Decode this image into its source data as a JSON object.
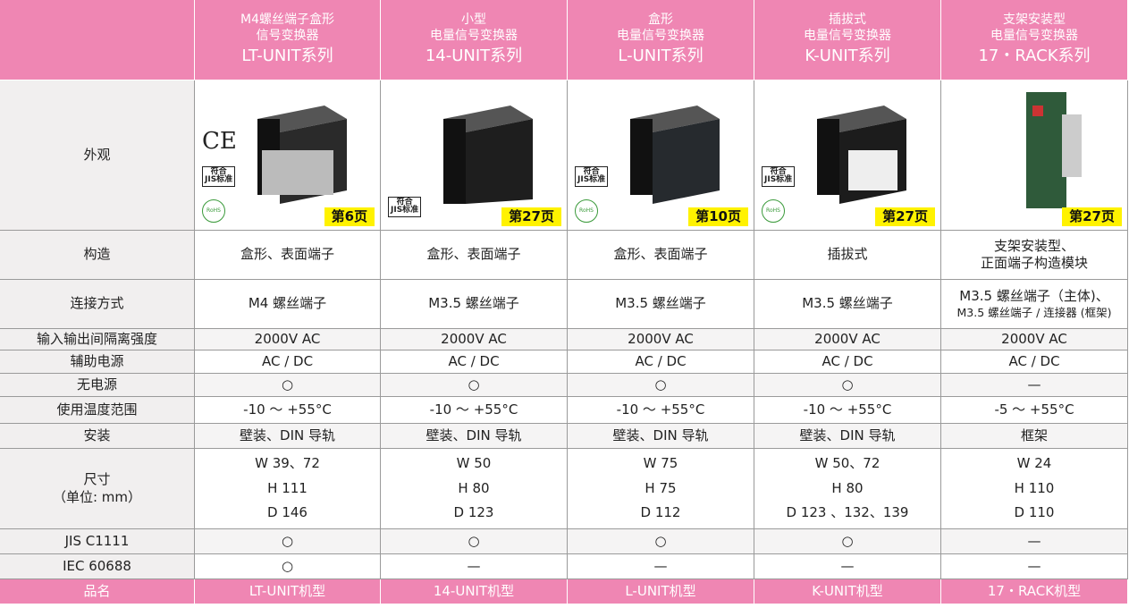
{
  "table": {
    "corner": "",
    "columns": [
      {
        "title": [
          "M4螺丝端子盒形",
          "信号变换器"
        ],
        "series": "LT-UNIT系列"
      },
      {
        "title": [
          "小型",
          "电量信号变换器"
        ],
        "series": "14-UNIT系列"
      },
      {
        "title": [
          "盒形",
          "电量信号变换器"
        ],
        "series": "L-UNIT系列"
      },
      {
        "title": [
          "插拔式",
          "电量信号变换器"
        ],
        "series": "K-UNIT系列"
      },
      {
        "title": [
          "支架安装型",
          "电量信号变换器"
        ],
        "series": "17・RACK系列"
      }
    ],
    "image_row": {
      "label": "外观",
      "cells": [
        {
          "page": "第6页",
          "ce": "CE",
          "jis": [
            "符合",
            "JIS标准"
          ],
          "rohs": "RoHS"
        },
        {
          "page": "第27页",
          "jis": [
            "符合",
            "JIS标准"
          ]
        },
        {
          "page": "第10页",
          "jis": [
            "符合",
            "JIS标准"
          ],
          "rohs": "RoHS"
        },
        {
          "page": "第27页",
          "jis": [
            "符合",
            "JIS标准"
          ],
          "rohs": "RoHS"
        },
        {
          "page": "第27页"
        }
      ]
    },
    "rows": [
      {
        "label": [
          "构造"
        ],
        "cells": [
          [
            "盒形、表面端子"
          ],
          [
            "盒形、表面端子"
          ],
          [
            "盒形、表面端子"
          ],
          [
            "插拔式"
          ],
          [
            "支架安装型、",
            "正面端子构造模块"
          ]
        ]
      },
      {
        "label": [
          "连接方式"
        ],
        "cells": [
          [
            "M4 螺丝端子"
          ],
          [
            "M3.5 螺丝端子"
          ],
          [
            "M3.5 螺丝端子"
          ],
          [
            "M3.5 螺丝端子"
          ],
          [
            "M3.5 螺丝端子（主体)、",
            "M3.5 螺丝端子 / 连接器 (框架)"
          ]
        ]
      },
      {
        "label": [
          "输入输出间隔离强度"
        ],
        "cells": [
          [
            "2000V AC"
          ],
          [
            "2000V AC"
          ],
          [
            "2000V AC"
          ],
          [
            "2000V AC"
          ],
          [
            "2000V AC"
          ]
        ]
      },
      {
        "label": [
          "辅助电源"
        ],
        "cells": [
          [
            "AC / DC"
          ],
          [
            "AC / DC"
          ],
          [
            "AC / DC"
          ],
          [
            "AC / DC"
          ],
          [
            "AC / DC"
          ]
        ]
      },
      {
        "label": [
          "无电源"
        ],
        "cells": [
          [
            "○"
          ],
          [
            "○"
          ],
          [
            "○"
          ],
          [
            "○"
          ],
          [
            "—"
          ]
        ]
      },
      {
        "label": [
          "使用温度范围"
        ],
        "cells": [
          [
            "-10 ～ +55°C"
          ],
          [
            "-10 ～ +55°C"
          ],
          [
            "-10 ～ +55°C"
          ],
          [
            "-10 ～ +55°C"
          ],
          [
            "-5 ～ +55°C"
          ]
        ]
      },
      {
        "label": [
          "安装"
        ],
        "cells": [
          [
            "壁装、DIN 导轨"
          ],
          [
            "壁装、DIN 导轨"
          ],
          [
            "壁装、DIN 导轨"
          ],
          [
            "壁装、DIN 导轨"
          ],
          [
            "框架"
          ]
        ]
      },
      {
        "label": [
          "尺寸",
          "（单位: mm）"
        ],
        "cells": [
          [
            "W 39、72",
            "H 111",
            "D 146"
          ],
          [
            "W 50",
            "H 80",
            "D 123"
          ],
          [
            "W 75",
            "H 75",
            "D 112"
          ],
          [
            "W 50、72",
            "H 80",
            "D 123 、132、139"
          ],
          [
            "W 24",
            "H 110",
            "D 110"
          ]
        ]
      },
      {
        "label": [
          "JIS C1111"
        ],
        "cells": [
          [
            "○"
          ],
          [
            "○"
          ],
          [
            "○"
          ],
          [
            "○"
          ],
          [
            "—"
          ]
        ]
      },
      {
        "label": [
          "IEC 60688"
        ],
        "cells": [
          [
            "○"
          ],
          [
            "—"
          ],
          [
            "—"
          ],
          [
            "—"
          ],
          [
            "—"
          ]
        ]
      }
    ],
    "footer": {
      "label": "品名",
      "cells": [
        "LT-UNIT机型",
        "14-UNIT机型",
        "L-UNIT机型",
        "K-UNIT机型",
        "17・RACK机型"
      ]
    }
  }
}
